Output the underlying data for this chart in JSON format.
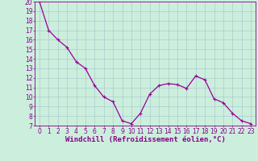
{
  "x": [
    0,
    1,
    2,
    3,
    4,
    5,
    6,
    7,
    8,
    9,
    10,
    11,
    12,
    13,
    14,
    15,
    16,
    17,
    18,
    19,
    20,
    21,
    22,
    23
  ],
  "y": [
    20,
    17,
    16,
    15.2,
    13.7,
    13.0,
    11.2,
    10.0,
    9.5,
    7.5,
    7.2,
    8.3,
    10.3,
    11.2,
    11.4,
    11.3,
    10.9,
    12.2,
    11.8,
    9.8,
    9.4,
    8.3,
    7.5,
    7.2
  ],
  "line_color": "#990099",
  "marker": "+",
  "marker_size": 3,
  "marker_linewidth": 0.8,
  "bg_color": "#cceedd",
  "grid_color": "#aacccc",
  "xlabel": "Windchill (Refroidissement éolien,°C)",
  "xlim": [
    -0.5,
    23.5
  ],
  "ylim": [
    7,
    20
  ],
  "yticks": [
    7,
    8,
    9,
    10,
    11,
    12,
    13,
    14,
    15,
    16,
    17,
    18,
    19,
    20
  ],
  "xticks": [
    0,
    1,
    2,
    3,
    4,
    5,
    6,
    7,
    8,
    9,
    10,
    11,
    12,
    13,
    14,
    15,
    16,
    17,
    18,
    19,
    20,
    21,
    22,
    23
  ],
  "tick_fontsize": 5.5,
  "xlabel_fontsize": 6.5,
  "tick_color": "#880088",
  "axis_color": "#880088",
  "linewidth": 0.9
}
